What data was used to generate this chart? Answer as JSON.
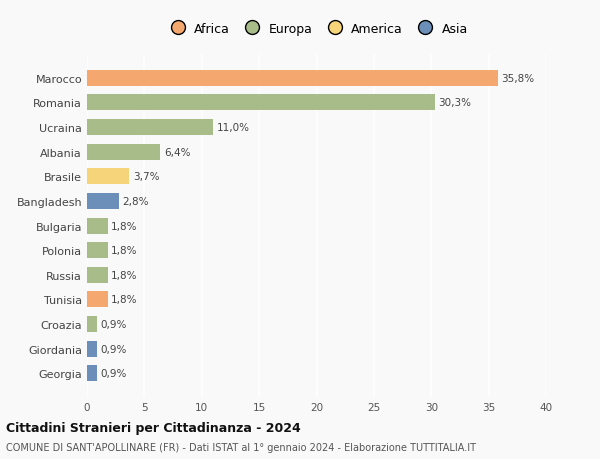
{
  "countries": [
    "Marocco",
    "Romania",
    "Ucraina",
    "Albania",
    "Brasile",
    "Bangladesh",
    "Bulgaria",
    "Polonia",
    "Russia",
    "Tunisia",
    "Croazia",
    "Giordania",
    "Georgia"
  ],
  "values": [
    35.8,
    30.3,
    11.0,
    6.4,
    3.7,
    2.8,
    1.8,
    1.8,
    1.8,
    1.8,
    0.9,
    0.9,
    0.9
  ],
  "labels": [
    "35,8%",
    "30,3%",
    "11,0%",
    "6,4%",
    "3,7%",
    "2,8%",
    "1,8%",
    "1,8%",
    "1,8%",
    "1,8%",
    "0,9%",
    "0,9%",
    "0,9%"
  ],
  "continents": [
    "Africa",
    "Europa",
    "Europa",
    "Europa",
    "America",
    "Asia",
    "Europa",
    "Europa",
    "Europa",
    "Africa",
    "Europa",
    "Asia",
    "Asia"
  ],
  "colors": {
    "Africa": "#F4A870",
    "Europa": "#A8BC8A",
    "America": "#F5D47A",
    "Asia": "#6B8FB8"
  },
  "legend_order": [
    "Africa",
    "Europa",
    "America",
    "Asia"
  ],
  "xlim": [
    0,
    40
  ],
  "xticks": [
    0,
    5,
    10,
    15,
    20,
    25,
    30,
    35,
    40
  ],
  "title": "Cittadini Stranieri per Cittadinanza - 2024",
  "subtitle": "COMUNE DI SANT'APOLLINARE (FR) - Dati ISTAT al 1° gennaio 2024 - Elaborazione TUTTITALIA.IT",
  "background_color": "#f9f9f9",
  "grid_color": "#ffffff",
  "bar_height": 0.65
}
